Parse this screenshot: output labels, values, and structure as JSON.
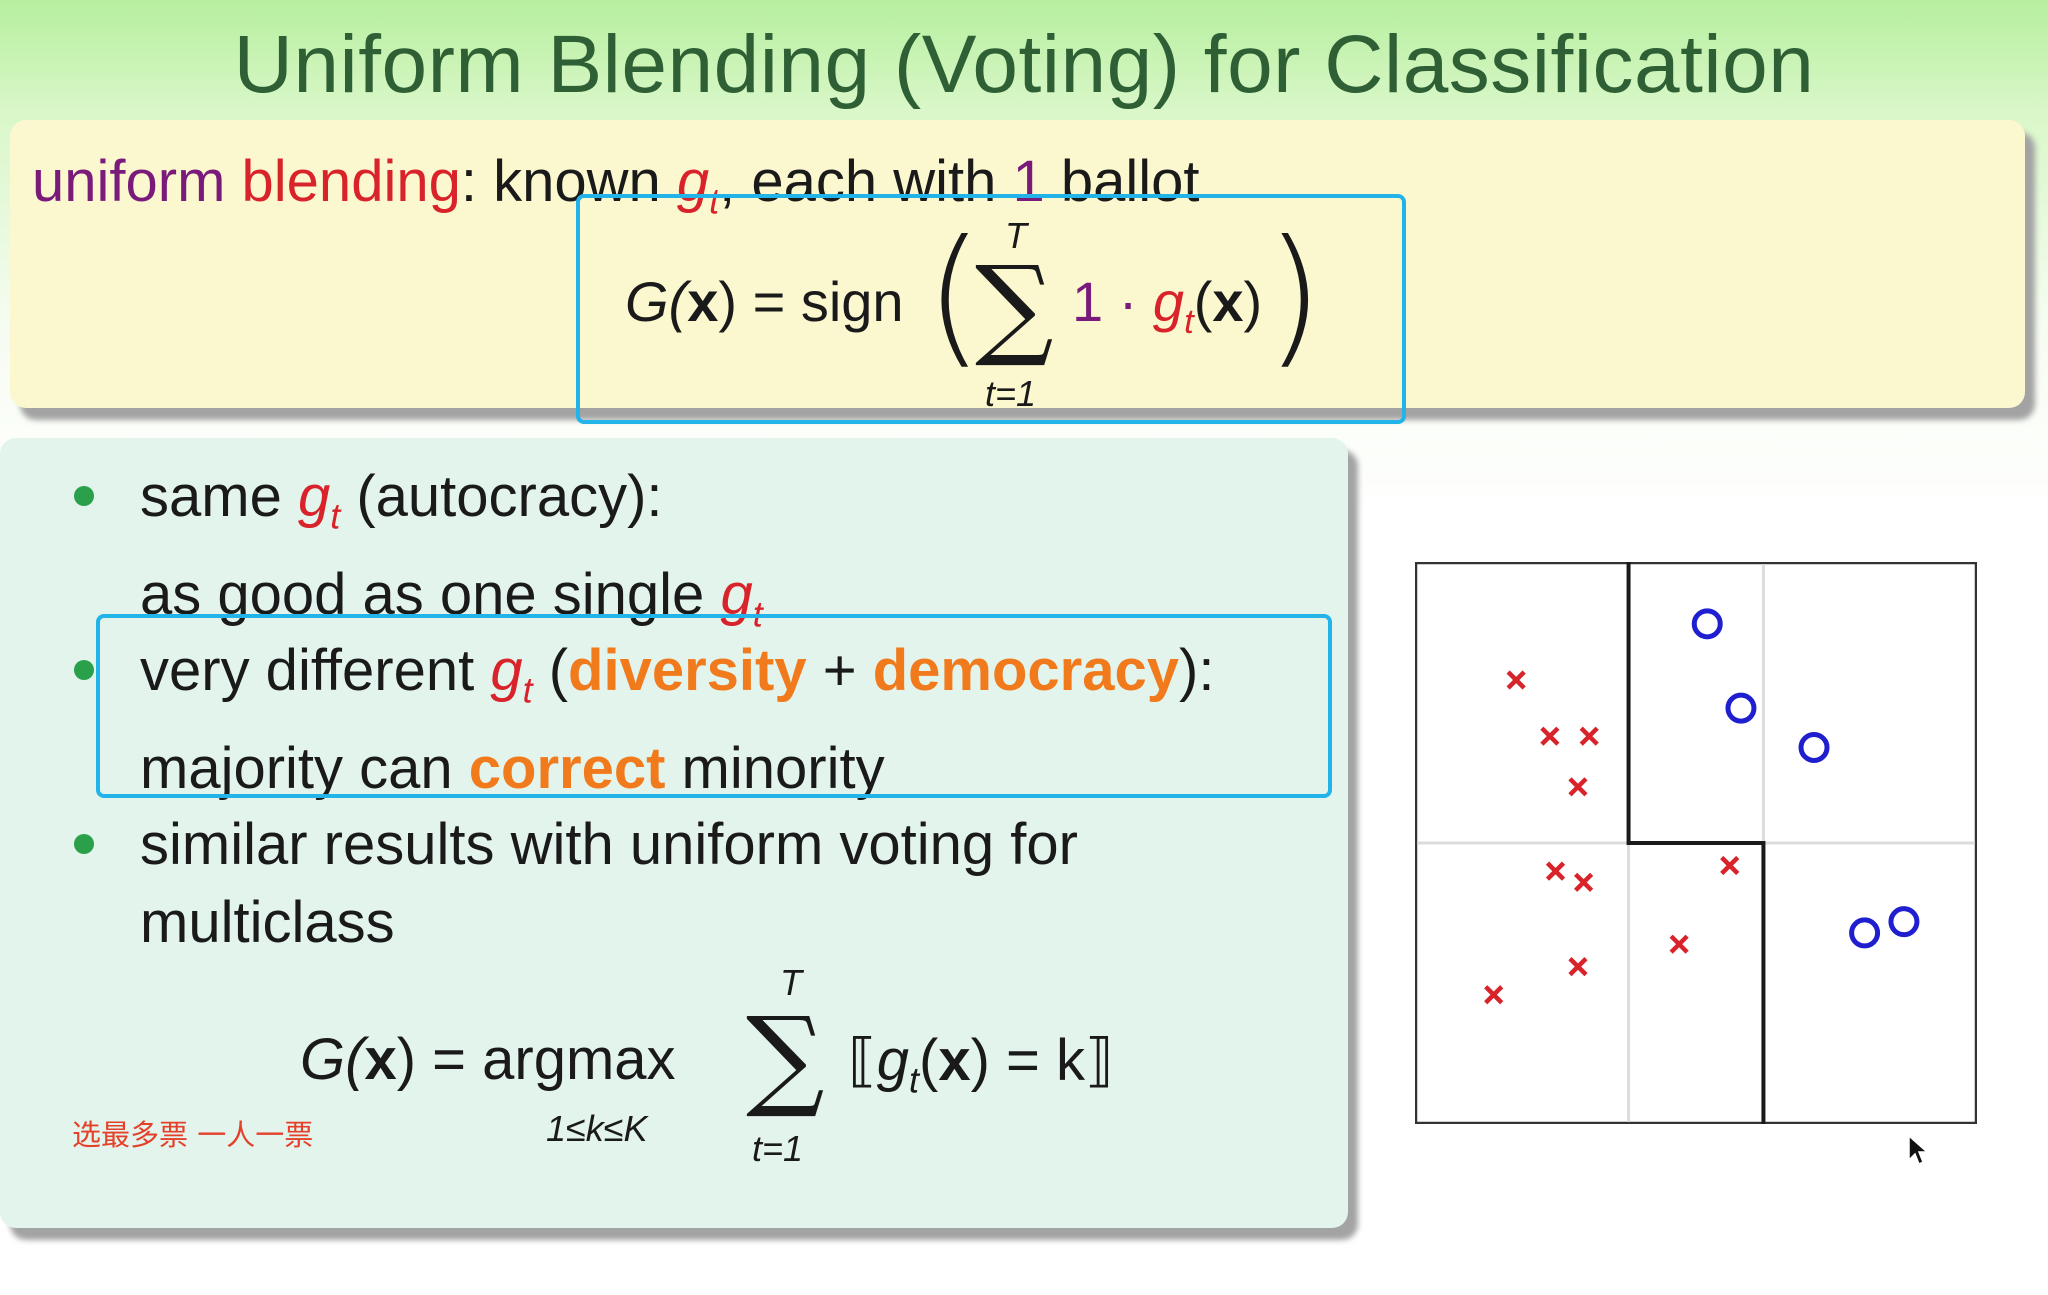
{
  "slide": {
    "title": "Uniform Blending (Voting) for Classification",
    "intro": {
      "term1": "uniform",
      "term2": "blending",
      "rest1": ": known ",
      "g": "g",
      "t": "t",
      "rest2": ", each with ",
      "one": "1",
      "rest3": " ballot"
    },
    "formula1": {
      "lhs": "G(",
      "x": "x",
      "eq": ") = sign",
      "upper": "T",
      "lower": "t=1",
      "one_dot": "1 · ",
      "g": "g",
      "t": "t",
      "arg_open": "(",
      "arg_close": ")"
    },
    "bullets": [
      {
        "line1_a": "same ",
        "line1_g": "g",
        "line1_t": "t",
        "line1_b": " (autocracy):",
        "line2_a": "as good as one single ",
        "line2_g": "g",
        "line2_t": "t"
      },
      {
        "line1_a": "very different ",
        "line1_g": "g",
        "line1_t": "t",
        "line1_b": " (",
        "diversity": "diversity",
        "plus": " + ",
        "democracy": "democracy",
        "line1_c": "):",
        "line2_a": "majority can ",
        "correct": "correct",
        "line2_b": " minority"
      },
      {
        "line1": "similar results with uniform voting for",
        "line2": "multiclass"
      }
    ],
    "formula2": {
      "lhs": "G(",
      "x": "x",
      "eq": ") = argmax",
      "sub": "1≤k≤K",
      "upper": "T",
      "lower": "t=1",
      "bracket_open": "⟦",
      "g": "g",
      "t": "t",
      "mid": "(",
      "x2": "x",
      "rhs": ") = k",
      "bracket_close": "⟧"
    },
    "note": "选最多票 一人一票"
  },
  "chart_data": {
    "type": "scatter",
    "xlim": [
      0,
      1
    ],
    "ylim": [
      0,
      1
    ],
    "grid": true,
    "colors": {
      "cross": "#d8232a",
      "circle": "#1f1fd0"
    },
    "series": [
      {
        "marker": "cross",
        "points": [
          [
            0.18,
            0.79
          ],
          [
            0.24,
            0.69
          ],
          [
            0.31,
            0.69
          ],
          [
            0.29,
            0.6
          ],
          [
            0.25,
            0.45
          ],
          [
            0.3,
            0.43
          ],
          [
            0.29,
            0.28
          ],
          [
            0.14,
            0.23
          ],
          [
            0.47,
            0.32
          ],
          [
            0.56,
            0.46
          ]
        ]
      },
      {
        "marker": "circle",
        "points": [
          [
            0.52,
            0.89
          ],
          [
            0.58,
            0.74
          ],
          [
            0.71,
            0.67
          ],
          [
            0.8,
            0.34
          ],
          [
            0.87,
            0.36
          ]
        ]
      }
    ],
    "boundaries": [
      [
        [
          0.38,
          1.0
        ],
        [
          0.38,
          0.5
        ],
        [
          0.62,
          0.5
        ],
        [
          0.62,
          0.0
        ]
      ]
    ]
  }
}
